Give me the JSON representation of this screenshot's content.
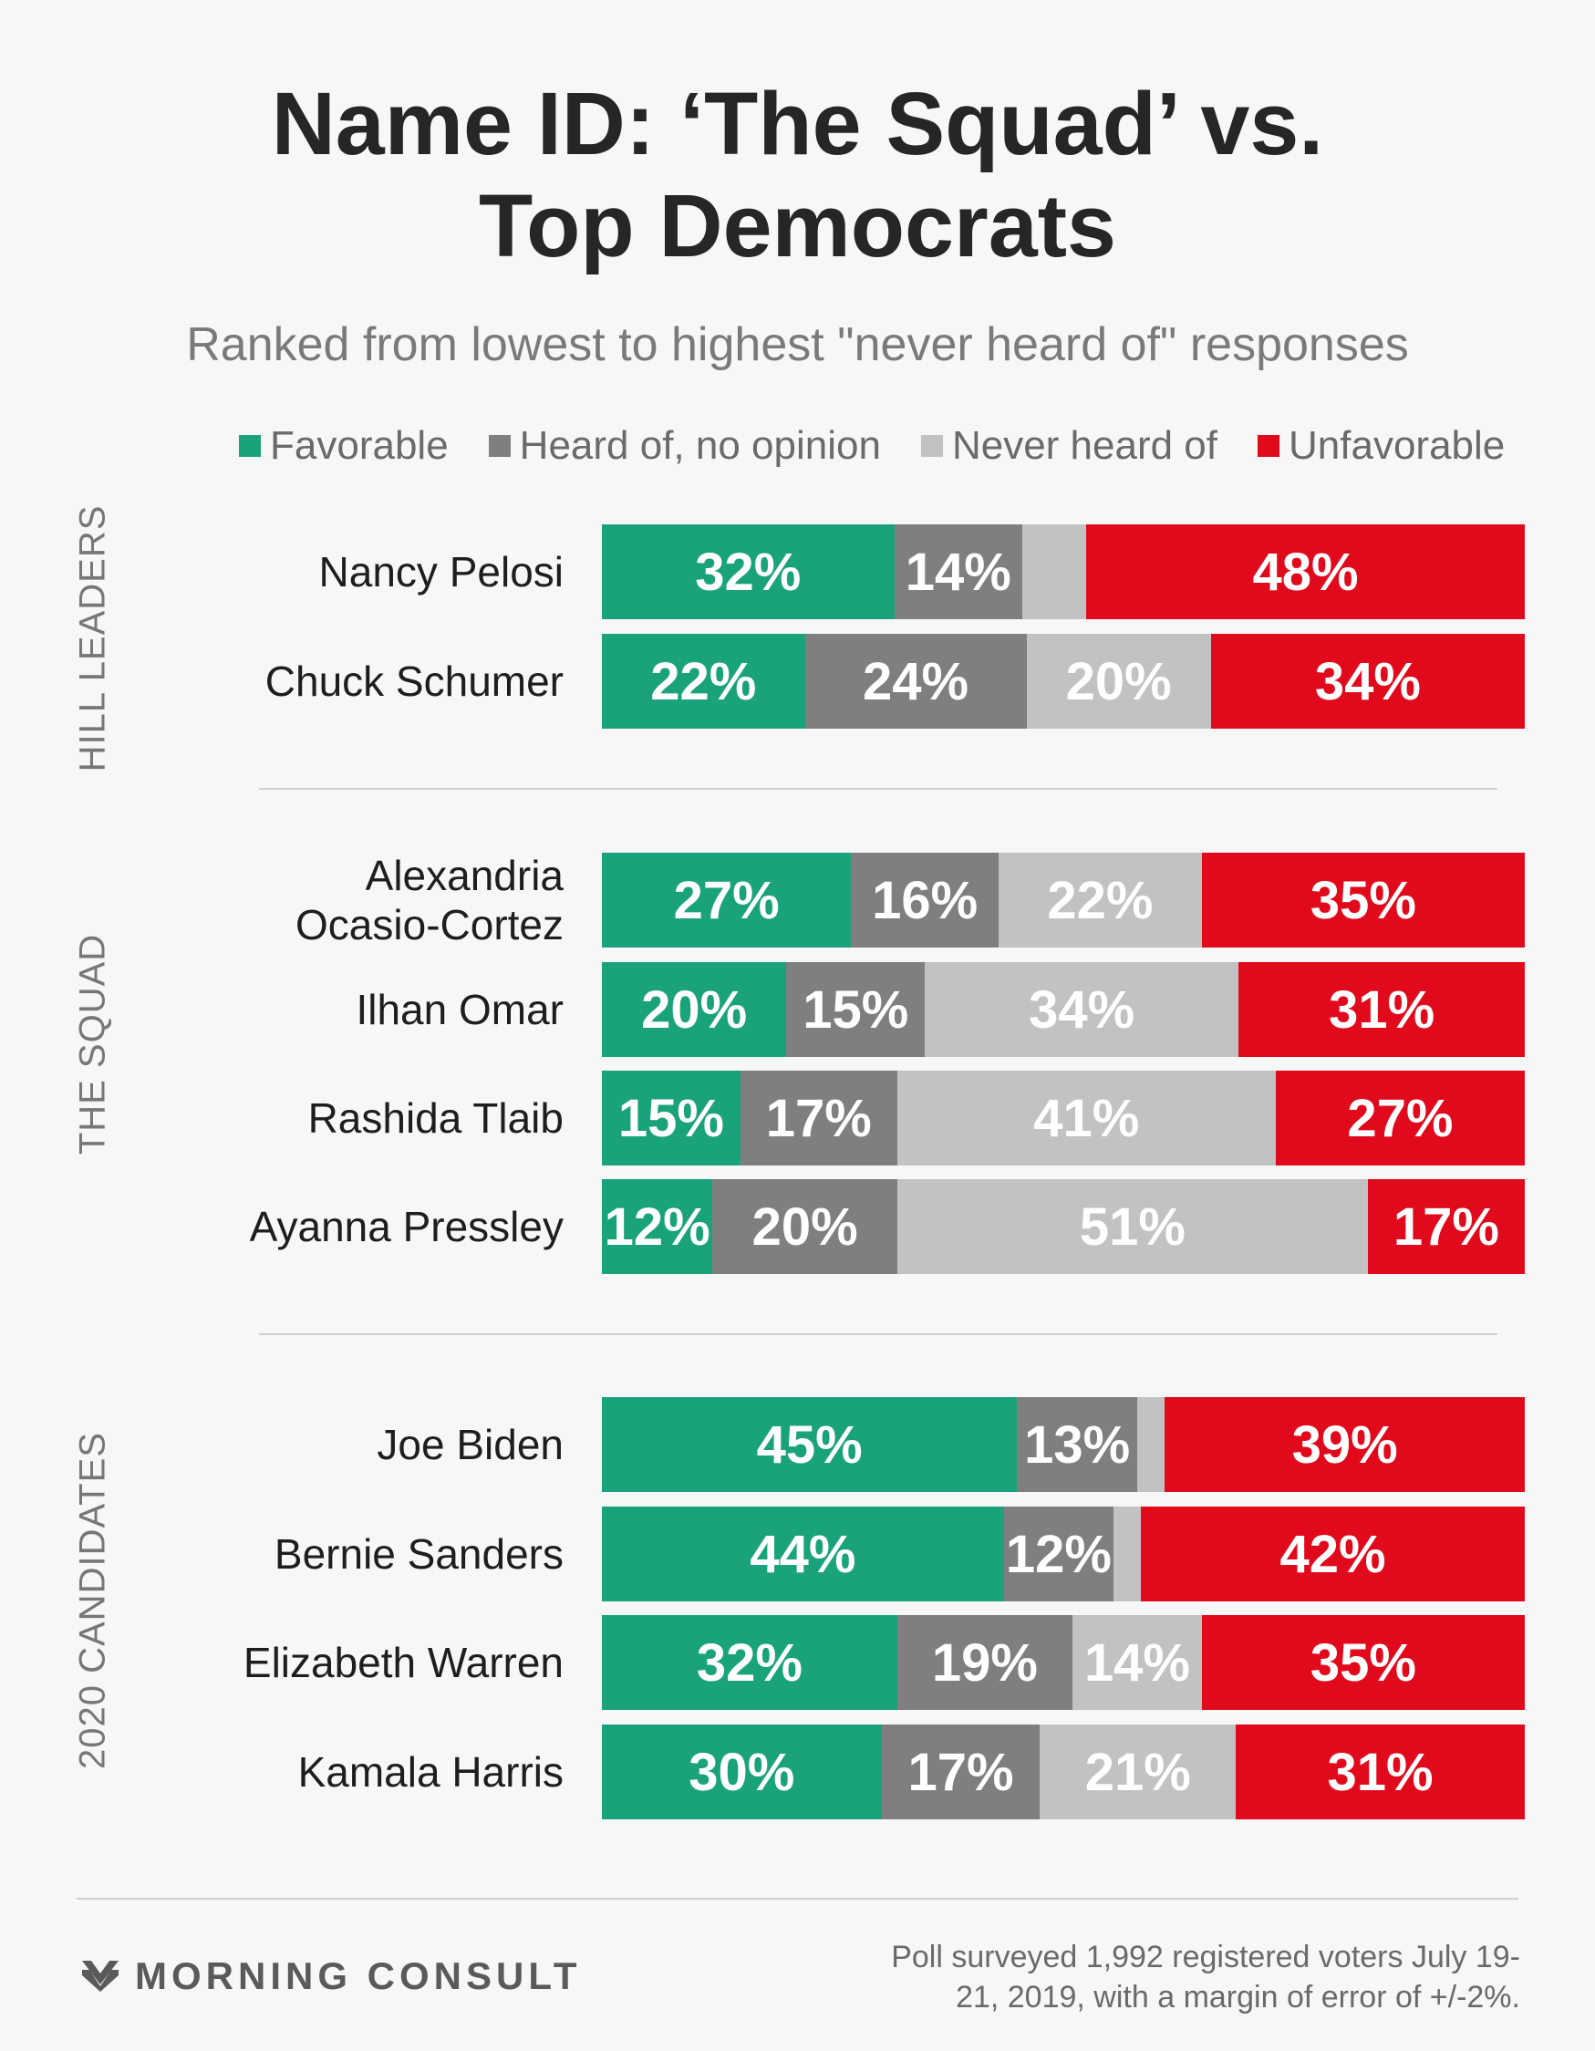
{
  "title": "Name ID: ‘The Squad’ vs.\nTop Democrats",
  "subtitle": "Ranked from lowest to highest \"never heard of\" responses",
  "legend": [
    {
      "label": "Favorable",
      "color": "#1aa37a"
    },
    {
      "label": "Heard of, no opinion",
      "color": "#7f7f7f"
    },
    {
      "label": "Never heard of",
      "color": "#c2c2c2"
    },
    {
      "label": "Unfavorable",
      "color": "#e10a1c"
    }
  ],
  "chart_data": {
    "type": "bar",
    "stacked": true,
    "orientation": "horizontal",
    "title": "Name ID: ‘The Squad’ vs. Top Democrats",
    "subtitle": "Ranked from lowest to highest \"never heard of\" responses",
    "series_names": [
      "Favorable",
      "Heard of, no opinion",
      "Never heard of",
      "Unfavorable"
    ],
    "groups": [
      {
        "name": "HILL LEADERS",
        "rows": [
          {
            "name": "Nancy Pelosi",
            "values": [
              32,
              14,
              7,
              48
            ],
            "labels": [
              "32%",
              "14%",
              "",
              "48%"
            ]
          },
          {
            "name": "Chuck Schumer",
            "values": [
              22,
              24,
              20,
              34
            ],
            "labels": [
              "22%",
              "24%",
              "20%",
              "34%"
            ]
          }
        ]
      },
      {
        "name": "THE SQUAD",
        "rows": [
          {
            "name": "Alexandria\nOcasio-Cortez",
            "values": [
              27,
              16,
              22,
              35
            ],
            "labels": [
              "27%",
              "16%",
              "22%",
              "35%"
            ]
          },
          {
            "name": "Ilhan Omar",
            "values": [
              20,
              15,
              34,
              31
            ],
            "labels": [
              "20%",
              "15%",
              "34%",
              "31%"
            ]
          },
          {
            "name": "Rashida Tlaib",
            "values": [
              15,
              17,
              41,
              27
            ],
            "labels": [
              "15%",
              "17%",
              "41%",
              "27%"
            ]
          },
          {
            "name": "Ayanna Pressley",
            "values": [
              12,
              20,
              51,
              17
            ],
            "labels": [
              "12%",
              "20%",
              "51%",
              "17%"
            ]
          }
        ]
      },
      {
        "name": "2020 CANDIDATES",
        "rows": [
          {
            "name": "Joe Biden",
            "values": [
              45,
              13,
              3,
              39
            ],
            "labels": [
              "45%",
              "13%",
              "",
              "39%"
            ]
          },
          {
            "name": "Bernie Sanders",
            "values": [
              44,
              12,
              3,
              42
            ],
            "labels": [
              "44%",
              "12%",
              "",
              "42%"
            ]
          },
          {
            "name": "Elizabeth Warren",
            "values": [
              32,
              19,
              14,
              35
            ],
            "labels": [
              "32%",
              "19%",
              "14%",
              "35%"
            ]
          },
          {
            "name": "Kamala Harris",
            "values": [
              30,
              17,
              21,
              31
            ],
            "labels": [
              "30%",
              "17%",
              "21%",
              "31%"
            ]
          }
        ]
      }
    ]
  },
  "footer": {
    "brand": "MORNING CONSULT",
    "note": "Poll surveyed 1,992 registered voters July 19-21, 2019, with a margin of error of +/-2%."
  }
}
